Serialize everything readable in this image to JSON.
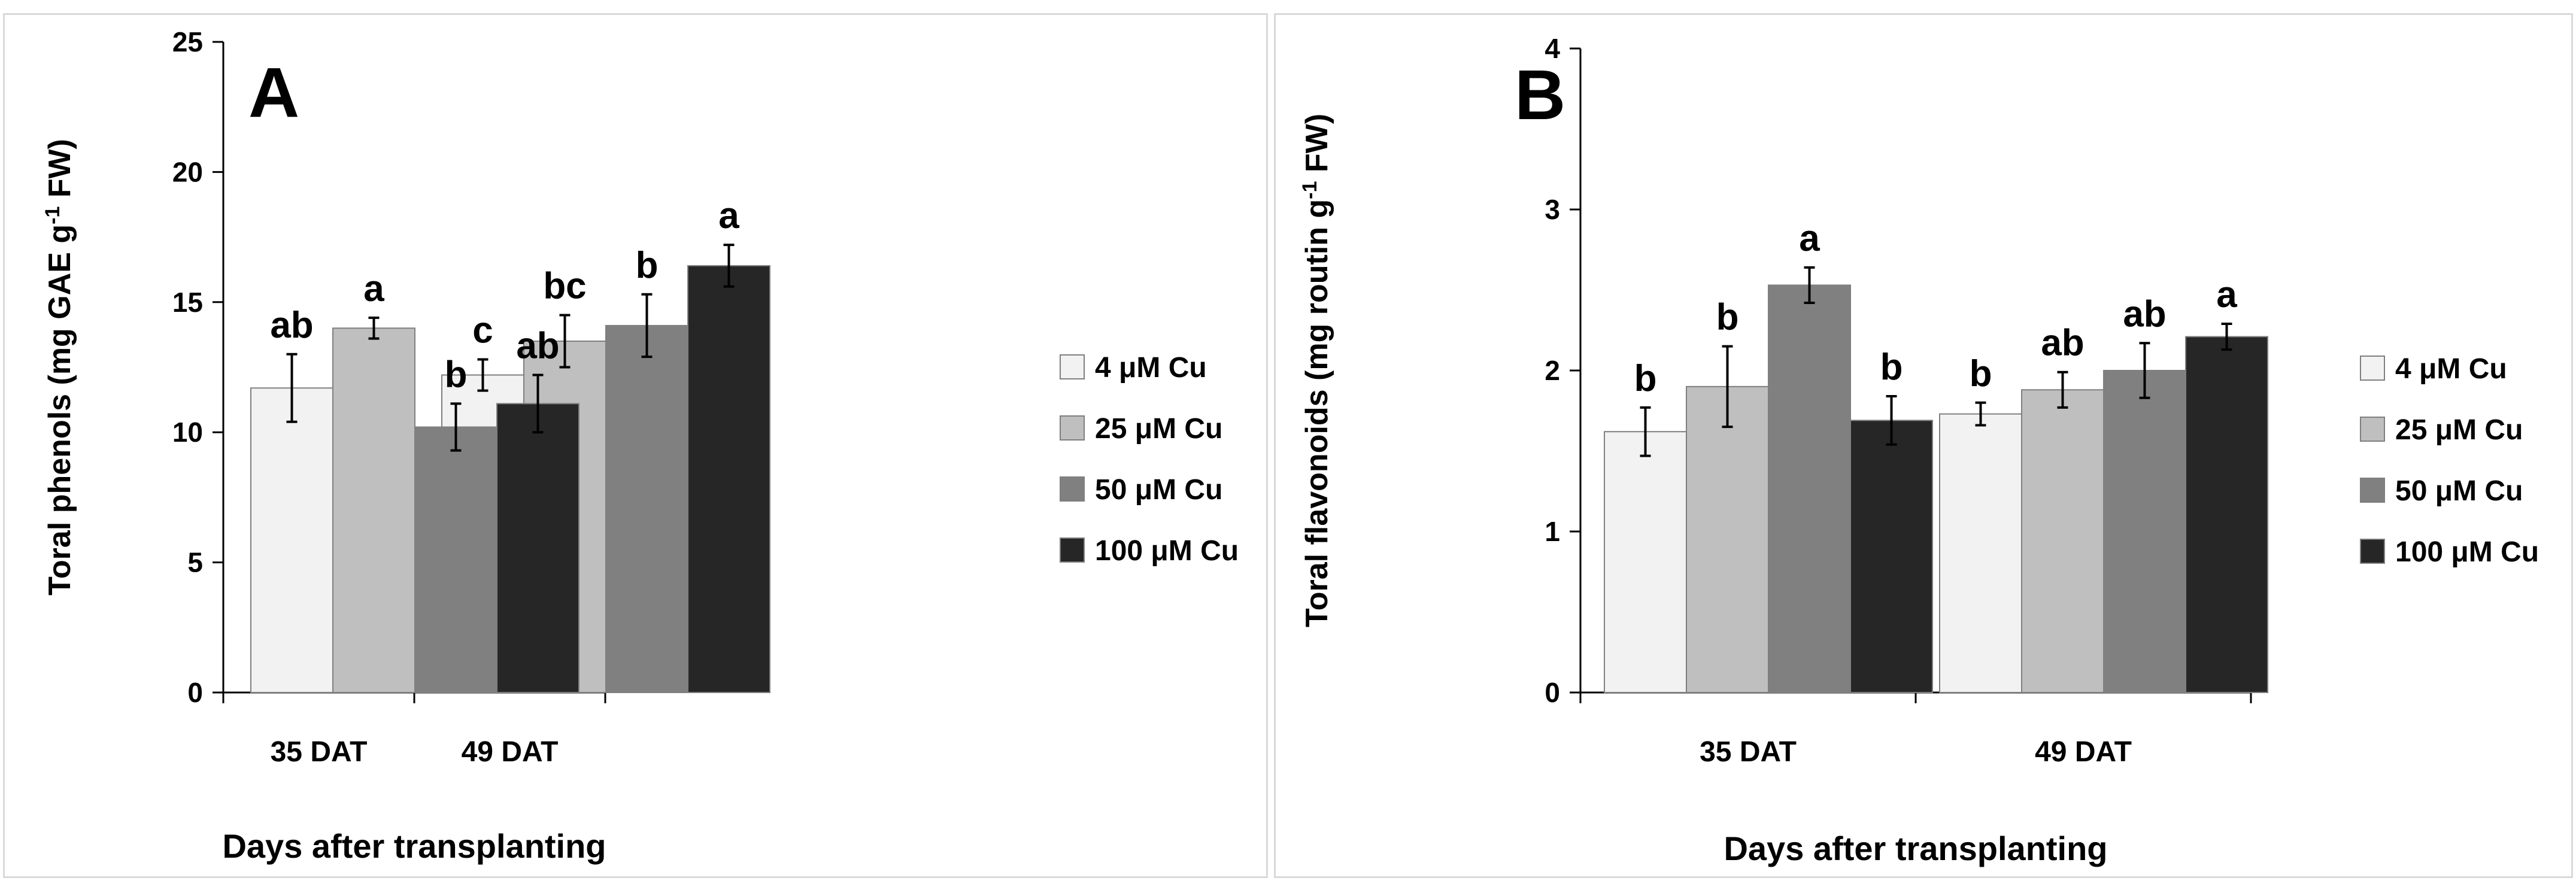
{
  "chart_data": [
    {
      "type": "bar",
      "panel_label": "A",
      "xlabel": "Days after transplanting",
      "ylabel": "Toral phenols (mg GAE g",
      "ylabel_sup": "-1",
      "ylabel_end": " FW)",
      "ylim": [
        0,
        25
      ],
      "yticks": [
        "0",
        "5",
        "10",
        "15",
        "20",
        "25"
      ],
      "categories": [
        "35 DAT",
        "49 DAT"
      ],
      "legend_position": "right",
      "series": [
        {
          "name": "4 μM Cu",
          "color": "#f2f2f2",
          "values": [
            11.7,
            12.2
          ],
          "errors": [
            1.3,
            0.6
          ],
          "letters": [
            "ab",
            "c"
          ]
        },
        {
          "name": "25 μM Cu",
          "color": "#bfbfbf",
          "values": [
            14.0,
            13.5
          ],
          "errors": [
            0.4,
            1.0
          ],
          "letters": [
            "a",
            "bc"
          ]
        },
        {
          "name": "50 μM Cu",
          "color": "#808080",
          "values": [
            10.2,
            14.1
          ],
          "errors": [
            0.9,
            1.2
          ],
          "letters": [
            "b",
            "b"
          ]
        },
        {
          "name": "100 μM Cu",
          "color": "#262626",
          "values": [
            11.1,
            16.4
          ],
          "errors": [
            1.1,
            0.8
          ],
          "letters": [
            "ab",
            "a"
          ]
        }
      ]
    },
    {
      "type": "bar",
      "panel_label": "B",
      "xlabel": "Days after transplanting",
      "ylabel": "Toral flavonoids (mg routin g",
      "ylabel_sup": "-1",
      "ylabel_end": " FW)",
      "ylim": [
        0,
        4
      ],
      "yticks": [
        "0",
        "1",
        "2",
        "3",
        "4"
      ],
      "categories": [
        "35 DAT",
        "49 DAT"
      ],
      "legend_position": "right",
      "series": [
        {
          "name": "4 μM Cu",
          "color": "#f2f2f2",
          "values": [
            1.62,
            1.73
          ],
          "errors": [
            0.15,
            0.07
          ],
          "letters": [
            "b",
            "b"
          ]
        },
        {
          "name": "25 μM Cu",
          "color": "#bfbfbf",
          "values": [
            1.9,
            1.88
          ],
          "errors": [
            0.25,
            0.11
          ],
          "letters": [
            "b",
            "ab"
          ]
        },
        {
          "name": "50 μM Cu",
          "color": "#808080",
          "values": [
            2.53,
            2.0
          ],
          "errors": [
            0.11,
            0.17
          ],
          "letters": [
            "a",
            "ab"
          ]
        },
        {
          "name": "100 μM Cu",
          "color": "#262626",
          "values": [
            1.69,
            2.21
          ],
          "errors": [
            0.15,
            0.08
          ],
          "letters": [
            "b",
            "a"
          ]
        }
      ]
    }
  ]
}
